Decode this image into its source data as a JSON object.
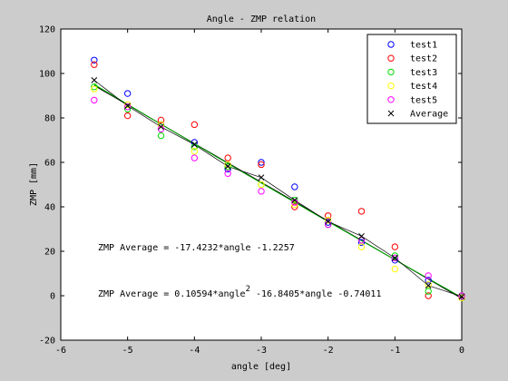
{
  "chart_data": {
    "type": "scatter",
    "title": "Angle - ZMP relation",
    "xlabel": "angle [deg]",
    "ylabel": "ZMP [mm]",
    "xlim": [
      -6,
      0
    ],
    "ylim": [
      -20,
      120
    ],
    "xticks": [
      -6,
      -5,
      -4,
      -3,
      -2,
      -1,
      0
    ],
    "yticks": [
      -20,
      0,
      20,
      40,
      60,
      80,
      100,
      120
    ],
    "legend_position": "top-right",
    "x": [
      -5.5,
      -5,
      -4.5,
      -4,
      -3.5,
      -3,
      -2.5,
      -2,
      -1.5,
      -1,
      -0.5,
      0
    ],
    "series": [
      {
        "name": "test1",
        "color": "#0000ff",
        "marker": "o",
        "values": [
          106,
          91,
          77,
          69,
          57,
          60,
          49,
          33,
          24,
          16,
          7,
          -1
        ]
      },
      {
        "name": "test2",
        "color": "#ff0000",
        "marker": "o",
        "values": [
          104,
          81,
          79,
          77,
          62,
          59,
          40,
          36,
          38,
          22,
          0,
          0
        ]
      },
      {
        "name": "test3",
        "color": "#00dd00",
        "marker": "o",
        "values": [
          94,
          84,
          72,
          67,
          58,
          50,
          43,
          32,
          25,
          18,
          2,
          0
        ]
      },
      {
        "name": "test4",
        "color": "#ffff00",
        "marker": "o",
        "values": [
          93,
          86,
          77,
          65,
          59,
          50,
          41,
          34,
          22,
          12,
          5,
          -1
        ]
      },
      {
        "name": "test5",
        "color": "#ff00ff",
        "marker": "o",
        "values": [
          88,
          85,
          75,
          62,
          55,
          47,
          42,
          32,
          25,
          17,
          9,
          0
        ]
      },
      {
        "name": "Average",
        "color": "#000000",
        "marker": "x",
        "values": [
          97,
          85.4,
          76,
          68,
          58.2,
          53.2,
          43,
          33.4,
          26.8,
          17,
          4.6,
          -0.4
        ]
      }
    ],
    "fit_lines": [
      {
        "label": "ZMP Average = -17.4232*angle -1.2257",
        "color": "#000000",
        "kind": "linear",
        "coeffs": [
          -17.4232,
          -1.2257
        ]
      },
      {
        "label_parts": [
          "ZMP Average = 0.10594*angle",
          "2",
          " -16.8405*angle -0.74011"
        ],
        "color": "#00aa00",
        "kind": "quadratic",
        "coeffs": [
          0.10594,
          -16.8405,
          -0.74011
        ]
      }
    ]
  }
}
